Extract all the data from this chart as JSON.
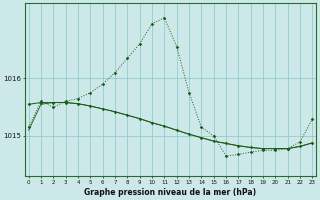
{
  "title": "Graphe pression niveau de la mer (hPa)",
  "background_color": "#cce8e8",
  "line_color": "#1a5c1a",
  "grid_color": "#88c8c8",
  "x_ticks": [
    0,
    1,
    2,
    3,
    4,
    5,
    6,
    7,
    8,
    9,
    10,
    11,
    12,
    13,
    14,
    15,
    16,
    17,
    18,
    19,
    20,
    21,
    22,
    23
  ],
  "y_ticks": [
    1015,
    1016
  ],
  "ylim": [
    1014.3,
    1017.3
  ],
  "xlim": [
    -0.3,
    23.3
  ],
  "series_arc": {
    "x": [
      0,
      1,
      2,
      3,
      4,
      5,
      6,
      7,
      8,
      9,
      10,
      11,
      12,
      13,
      14,
      15,
      16,
      17,
      18,
      19,
      20,
      21,
      22,
      23
    ],
    "y": [
      1015.15,
      1015.6,
      1015.5,
      1015.6,
      1015.65,
      1015.75,
      1015.9,
      1016.1,
      1016.35,
      1016.6,
      1016.95,
      1017.05,
      1016.55,
      1015.75,
      1015.15,
      1015.0,
      1014.65,
      1014.68,
      1014.72,
      1014.75,
      1014.75,
      1014.78,
      1014.9,
      1015.3
    ]
  },
  "series_flat_markers": {
    "x": [
      0,
      1,
      2,
      3,
      4,
      5,
      6,
      7,
      8,
      9,
      10,
      11,
      12,
      13,
      14,
      15,
      16,
      17,
      18,
      19,
      20,
      21,
      22,
      23
    ],
    "y": [
      1015.55,
      1015.58,
      1015.58,
      1015.58,
      1015.56,
      1015.52,
      1015.47,
      1015.42,
      1015.36,
      1015.3,
      1015.23,
      1015.17,
      1015.1,
      1015.03,
      1014.97,
      1014.91,
      1014.87,
      1014.83,
      1014.8,
      1014.78,
      1014.78,
      1014.78,
      1014.82,
      1014.88
    ]
  },
  "series_flat_thin": {
    "x": [
      0,
      1,
      2,
      3,
      4,
      5,
      6,
      7,
      8,
      9,
      10,
      11,
      12,
      13,
      14,
      15,
      16,
      17,
      18,
      19,
      20,
      21,
      22,
      23
    ],
    "y": [
      1015.1,
      1015.55,
      1015.58,
      1015.58,
      1015.56,
      1015.52,
      1015.47,
      1015.42,
      1015.36,
      1015.3,
      1015.23,
      1015.17,
      1015.1,
      1015.03,
      1014.97,
      1014.91,
      1014.87,
      1014.83,
      1014.8,
      1014.78,
      1014.78,
      1014.78,
      1014.82,
      1014.88
    ]
  }
}
